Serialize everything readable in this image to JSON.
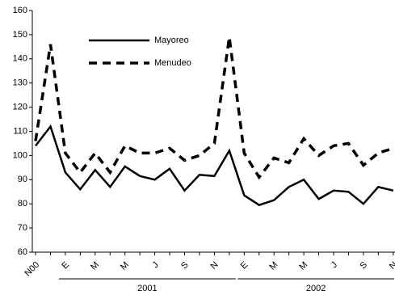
{
  "chart_data": {
    "type": "line",
    "categories": [
      "N00",
      null,
      "E",
      null,
      "M",
      null,
      "M",
      null,
      "J",
      null,
      "S",
      null,
      "N",
      null,
      "E",
      null,
      "M",
      null,
      "M",
      null,
      "J",
      null,
      "S",
      null,
      "N"
    ],
    "groups": [
      "2001",
      "2002"
    ],
    "series": [
      {
        "name": "Mayoreo",
        "color": "#000000",
        "dash": false,
        "values": [
          104,
          112,
          93,
          86,
          94,
          87,
          95.5,
          91.5,
          90,
          94.5,
          85.5,
          92,
          91.5,
          102,
          83.5,
          79.5,
          81.5,
          87,
          90,
          82,
          85.5,
          85,
          80,
          87,
          85.5
        ]
      },
      {
        "name": "Menudeo",
        "color": "#000000",
        "dash": true,
        "values": [
          106,
          146,
          101,
          93,
          101,
          93,
          104,
          101,
          101,
          103,
          98,
          100,
          105,
          149,
          101,
          91,
          99,
          97,
          107,
          100,
          104,
          105,
          96,
          101,
          103
        ]
      }
    ],
    "ylim": [
      60,
      160
    ],
    "yticks": [
      60,
      70,
      80,
      90,
      100,
      110,
      120,
      130,
      140,
      150,
      160
    ],
    "grid": false,
    "legend": "top-left"
  }
}
